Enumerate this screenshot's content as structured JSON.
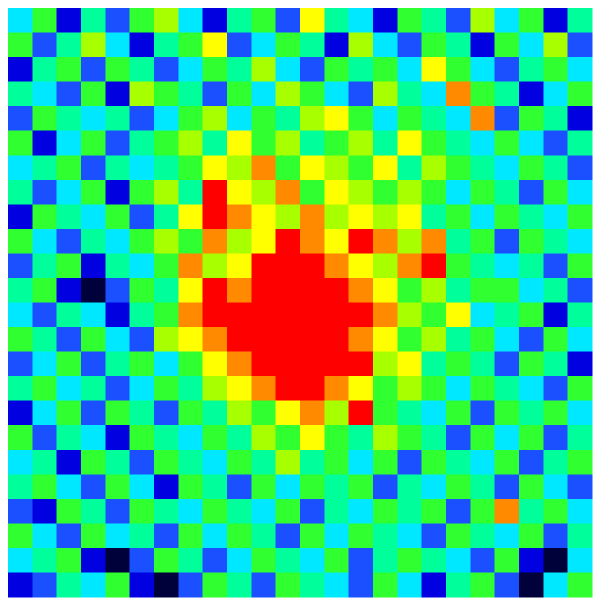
{
  "chart_data": {
    "type": "heatmap",
    "vlim": [
      0,
      9
    ],
    "colormap": [
      "#00003a",
      "#0000e0",
      "#1a50ff",
      "#00e8ff",
      "#00ff9a",
      "#30ff30",
      "#a8ff00",
      "#ffff00",
      "#ff8a00",
      "#ff0000"
    ],
    "values": [
      [
        3,
        5,
        1,
        4,
        2,
        5,
        6,
        3,
        1,
        4,
        5,
        2,
        7,
        4,
        3,
        1,
        5,
        4,
        2,
        6,
        3,
        5,
        1,
        4
      ],
      [
        5,
        2,
        4,
        6,
        3,
        1,
        4,
        5,
        7,
        2,
        3,
        5,
        4,
        1,
        6,
        3,
        2,
        5,
        4,
        1,
        5,
        3,
        6,
        2
      ],
      [
        1,
        4,
        5,
        2,
        5,
        4,
        2,
        3,
        5,
        4,
        6,
        3,
        2,
        5,
        4,
        5,
        3,
        7,
        5,
        3,
        2,
        4,
        5,
        3
      ],
      [
        4,
        3,
        2,
        5,
        1,
        6,
        5,
        4,
        2,
        5,
        3,
        6,
        5,
        3,
        2,
        6,
        4,
        3,
        8,
        5,
        4,
        1,
        3,
        5
      ],
      [
        2,
        5,
        4,
        3,
        4,
        2,
        3,
        5,
        6,
        3,
        5,
        4,
        6,
        7,
        5,
        3,
        5,
        4,
        3,
        8,
        2,
        5,
        4,
        1
      ],
      [
        5,
        1,
        3,
        5,
        2,
        4,
        5,
        6,
        4,
        7,
        5,
        6,
        4,
        5,
        6,
        4,
        7,
        5,
        4,
        3,
        5,
        3,
        2,
        4
      ],
      [
        3,
        4,
        5,
        2,
        4,
        3,
        4,
        5,
        7,
        6,
        8,
        5,
        7,
        6,
        5,
        7,
        4,
        6,
        5,
        4,
        3,
        5,
        4,
        2
      ],
      [
        4,
        2,
        3,
        5,
        1,
        5,
        6,
        4,
        9,
        7,
        6,
        8,
        5,
        7,
        6,
        5,
        6,
        5,
        3,
        5,
        4,
        2,
        5,
        3
      ],
      [
        1,
        5,
        4,
        3,
        5,
        2,
        4,
        7,
        9,
        8,
        7,
        6,
        8,
        6,
        7,
        6,
        7,
        4,
        5,
        3,
        5,
        4,
        3,
        5
      ],
      [
        5,
        3,
        2,
        4,
        3,
        5,
        6,
        5,
        8,
        6,
        7,
        9,
        8,
        7,
        9,
        8,
        6,
        8,
        4,
        5,
        2,
        5,
        4,
        3
      ],
      [
        2,
        4,
        5,
        1,
        4,
        3,
        5,
        8,
        6,
        7,
        9,
        9,
        9,
        8,
        7,
        6,
        8,
        9,
        5,
        4,
        3,
        4,
        2,
        5
      ],
      [
        4,
        5,
        1,
        0,
        2,
        5,
        4,
        7,
        9,
        8,
        9,
        9,
        9,
        9,
        8,
        7,
        5,
        6,
        4,
        5,
        5,
        3,
        4,
        2
      ],
      [
        3,
        2,
        4,
        3,
        1,
        4,
        5,
        8,
        9,
        9,
        9,
        9,
        9,
        9,
        9,
        8,
        6,
        5,
        7,
        3,
        4,
        5,
        1,
        4
      ],
      [
        5,
        4,
        2,
        5,
        3,
        2,
        6,
        7,
        8,
        9,
        9,
        9,
        9,
        9,
        8,
        7,
        5,
        6,
        4,
        5,
        3,
        2,
        5,
        3
      ],
      [
        2,
        3,
        5,
        2,
        4,
        5,
        3,
        5,
        7,
        8,
        9,
        9,
        9,
        9,
        9,
        6,
        7,
        4,
        5,
        4,
        2,
        5,
        4,
        1
      ],
      [
        4,
        5,
        3,
        4,
        2,
        3,
        5,
        4,
        6,
        7,
        8,
        9,
        9,
        8,
        7,
        5,
        6,
        5,
        3,
        5,
        4,
        3,
        2,
        5
      ],
      [
        1,
        3,
        5,
        2,
        5,
        4,
        2,
        5,
        4,
        6,
        5,
        7,
        8,
        6,
        9,
        5,
        4,
        3,
        5,
        2,
        5,
        4,
        5,
        3
      ],
      [
        5,
        2,
        4,
        3,
        1,
        5,
        4,
        3,
        5,
        4,
        6,
        5,
        7,
        5,
        4,
        6,
        5,
        4,
        2,
        5,
        3,
        5,
        2,
        4
      ],
      [
        3,
        4,
        1,
        5,
        4,
        2,
        5,
        4,
        3,
        5,
        4,
        6,
        4,
        5,
        3,
        5,
        2,
        5,
        4,
        3,
        5,
        2,
        4,
        5
      ],
      [
        4,
        5,
        3,
        2,
        5,
        3,
        1,
        5,
        4,
        2,
        5,
        3,
        5,
        4,
        5,
        2,
        4,
        3,
        5,
        4,
        2,
        5,
        3,
        2
      ],
      [
        2,
        1,
        5,
        4,
        2,
        5,
        4,
        3,
        5,
        4,
        3,
        5,
        2,
        4,
        3,
        5,
        4,
        5,
        2,
        5,
        8,
        4,
        5,
        3
      ],
      [
        5,
        3,
        2,
        5,
        3,
        4,
        2,
        5,
        3,
        5,
        4,
        2,
        5,
        3,
        5,
        4,
        3,
        2,
        5,
        4,
        3,
        5,
        2,
        4
      ],
      [
        3,
        4,
        5,
        1,
        0,
        2,
        5,
        4,
        2,
        3,
        5,
        4,
        3,
        5,
        2,
        4,
        5,
        4,
        3,
        2,
        5,
        1,
        0,
        3
      ],
      [
        1,
        2,
        4,
        3,
        5,
        1,
        0,
        2,
        5,
        4,
        2,
        5,
        4,
        3,
        2,
        5,
        3,
        1,
        4,
        5,
        2,
        0,
        3,
        5
      ]
    ]
  }
}
